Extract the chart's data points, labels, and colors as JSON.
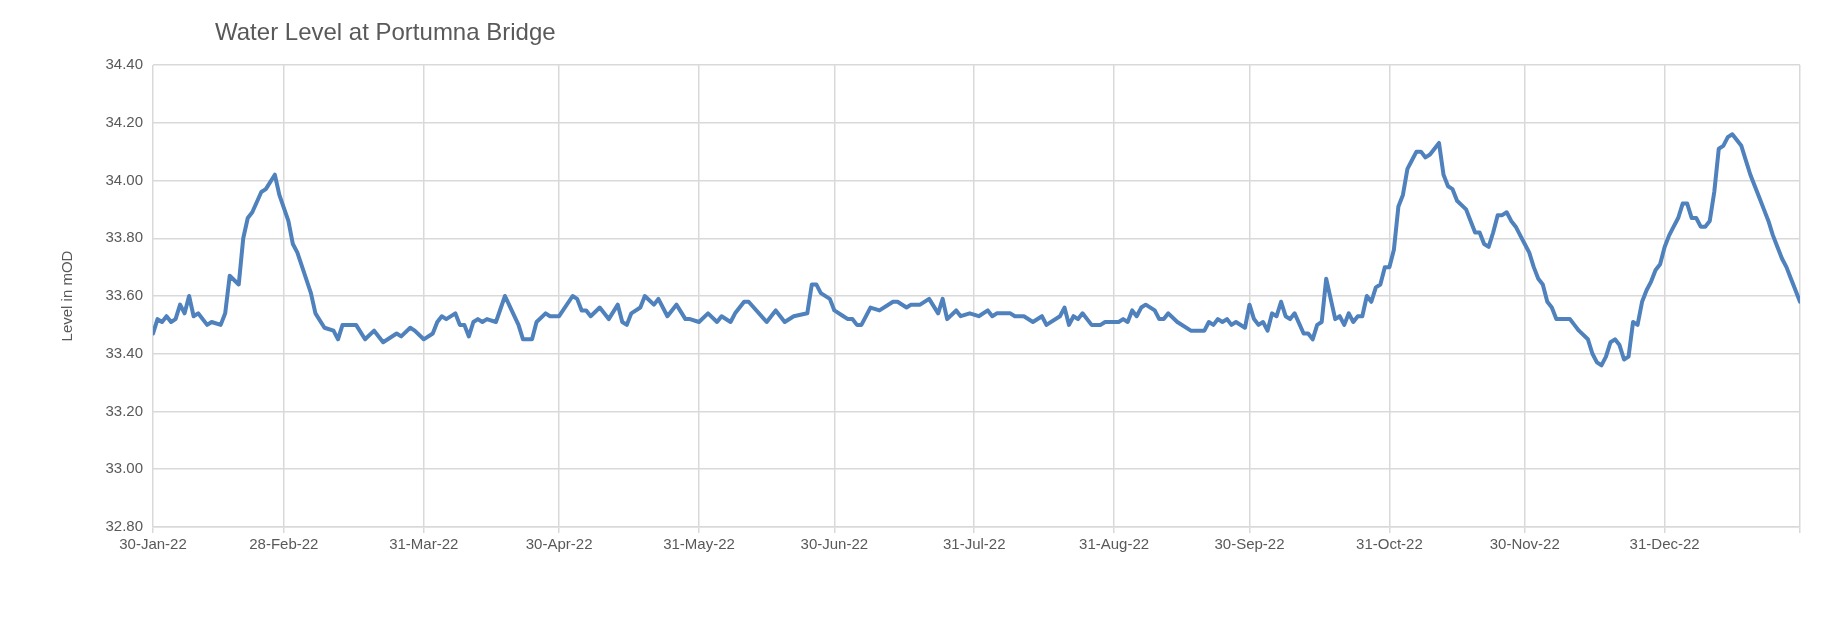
{
  "chart_data": {
    "type": "line",
    "title": "Water Level at Portumna Bridge",
    "ylabel": "Level in mOD",
    "xlim": [
      "2022-01-30",
      "2023-01-30"
    ],
    "xticks": [
      {
        "value": "2022-01-30",
        "label": "30-Jan-22"
      },
      {
        "value": "2022-02-28",
        "label": "28-Feb-22"
      },
      {
        "value": "2022-03-31",
        "label": "31-Mar-22"
      },
      {
        "value": "2022-04-30",
        "label": "30-Apr-22"
      },
      {
        "value": "2022-05-31",
        "label": "31-May-22"
      },
      {
        "value": "2022-06-30",
        "label": "30-Jun-22"
      },
      {
        "value": "2022-07-31",
        "label": "31-Jul-22"
      },
      {
        "value": "2022-08-31",
        "label": "31-Aug-22"
      },
      {
        "value": "2022-09-30",
        "label": "30-Sep-22"
      },
      {
        "value": "2022-10-31",
        "label": "31-Oct-22"
      },
      {
        "value": "2022-11-30",
        "label": "30-Nov-22"
      },
      {
        "value": "2022-12-31",
        "label": "31-Dec-22"
      },
      {
        "value": "2023-01-30",
        "label": null
      }
    ],
    "ylim": [
      32.8,
      34.4
    ],
    "yticks": [
      {
        "value": 32.8,
        "label": "32.80"
      },
      {
        "value": 33.0,
        "label": "33.00"
      },
      {
        "value": 33.2,
        "label": "33.20"
      },
      {
        "value": 33.4,
        "label": "33.40"
      },
      {
        "value": 33.6,
        "label": "33.60"
      },
      {
        "value": 33.8,
        "label": "33.80"
      },
      {
        "value": 34.0,
        "label": "34.00"
      },
      {
        "value": 34.2,
        "label": "34.20"
      },
      {
        "value": 34.4,
        "label": "34.40"
      }
    ],
    "grid": true,
    "legend": false,
    "marker": "none",
    "line_style": "solid",
    "series": [
      {
        "color": "#4f81bd",
        "x": [
          "2022-01-30",
          "2022-01-31",
          "2022-02-01",
          "2022-02-02",
          "2022-02-03",
          "2022-02-04",
          "2022-02-05",
          "2022-02-06",
          "2022-02-07",
          "2022-02-08",
          "2022-02-09",
          "2022-02-11",
          "2022-02-12",
          "2022-02-14",
          "2022-02-15",
          "2022-02-16",
          "2022-02-18",
          "2022-02-19",
          "2022-02-20",
          "2022-02-21",
          "2022-02-23",
          "2022-02-24",
          "2022-02-26",
          "2022-02-27",
          "2022-03-01",
          "2022-03-02",
          "2022-03-03",
          "2022-03-06",
          "2022-03-07",
          "2022-03-09",
          "2022-03-11",
          "2022-03-12",
          "2022-03-13",
          "2022-03-16",
          "2022-03-18",
          "2022-03-20",
          "2022-03-22",
          "2022-03-25",
          "2022-03-26",
          "2022-03-28",
          "2022-03-29",
          "2022-03-31",
          "2022-04-02",
          "2022-04-03",
          "2022-04-04",
          "2022-04-05",
          "2022-04-07",
          "2022-04-08",
          "2022-04-09",
          "2022-04-10",
          "2022-04-11",
          "2022-04-12",
          "2022-04-13",
          "2022-04-14",
          "2022-04-16",
          "2022-04-18",
          "2022-04-21",
          "2022-04-22",
          "2022-04-24",
          "2022-04-25",
          "2022-04-27",
          "2022-04-28",
          "2022-04-30",
          "2022-05-03",
          "2022-05-04",
          "2022-05-05",
          "2022-05-06",
          "2022-05-07",
          "2022-05-09",
          "2022-05-11",
          "2022-05-13",
          "2022-05-14",
          "2022-05-15",
          "2022-05-16",
          "2022-05-18",
          "2022-05-19",
          "2022-05-21",
          "2022-05-22",
          "2022-05-24",
          "2022-05-26",
          "2022-05-28",
          "2022-05-29",
          "2022-05-31",
          "2022-06-02",
          "2022-06-04",
          "2022-06-05",
          "2022-06-07",
          "2022-06-08",
          "2022-06-10",
          "2022-06-11",
          "2022-06-15",
          "2022-06-17",
          "2022-06-19",
          "2022-06-21",
          "2022-06-24",
          "2022-06-25",
          "2022-06-26",
          "2022-06-27",
          "2022-06-29",
          "2022-06-30",
          "2022-07-02",
          "2022-07-03",
          "2022-07-04",
          "2022-07-05",
          "2022-07-06",
          "2022-07-08",
          "2022-07-10",
          "2022-07-13",
          "2022-07-14",
          "2022-07-16",
          "2022-07-17",
          "2022-07-19",
          "2022-07-21",
          "2022-07-23",
          "2022-07-24",
          "2022-07-25",
          "2022-07-27",
          "2022-07-28",
          "2022-07-30",
          "2022-08-01",
          "2022-08-03",
          "2022-08-04",
          "2022-08-05",
          "2022-08-08",
          "2022-08-09",
          "2022-08-11",
          "2022-08-13",
          "2022-08-15",
          "2022-08-16",
          "2022-08-19",
          "2022-08-20",
          "2022-08-21",
          "2022-08-22",
          "2022-08-23",
          "2022-08-24",
          "2022-08-26",
          "2022-08-28",
          "2022-08-29",
          "2022-09-01",
          "2022-09-02",
          "2022-09-03",
          "2022-09-04",
          "2022-09-05",
          "2022-09-06",
          "2022-09-07",
          "2022-09-09",
          "2022-09-10",
          "2022-09-11",
          "2022-09-12",
          "2022-09-14",
          "2022-09-17",
          "2022-09-20",
          "2022-09-21",
          "2022-09-22",
          "2022-09-23",
          "2022-09-24",
          "2022-09-25",
          "2022-09-26",
          "2022-09-27",
          "2022-09-29",
          "2022-09-30",
          "2022-10-01",
          "2022-10-02",
          "2022-10-03",
          "2022-10-04",
          "2022-10-05",
          "2022-10-06",
          "2022-10-07",
          "2022-10-08",
          "2022-10-09",
          "2022-10-10",
          "2022-10-12",
          "2022-10-13",
          "2022-10-14",
          "2022-10-15",
          "2022-10-16",
          "2022-10-17",
          "2022-10-19",
          "2022-10-20",
          "2022-10-21",
          "2022-10-22",
          "2022-10-23",
          "2022-10-24",
          "2022-10-25",
          "2022-10-26",
          "2022-10-27",
          "2022-10-28",
          "2022-10-29",
          "2022-10-30",
          "2022-10-31",
          "2022-11-01",
          "2022-11-02",
          "2022-11-03",
          "2022-11-04",
          "2022-11-05",
          "2022-11-06",
          "2022-11-07",
          "2022-11-08",
          "2022-11-09",
          "2022-11-11",
          "2022-11-12",
          "2022-11-13",
          "2022-11-14",
          "2022-11-15",
          "2022-11-17",
          "2022-11-18",
          "2022-11-19",
          "2022-11-20",
          "2022-11-21",
          "2022-11-22",
          "2022-11-23",
          "2022-11-24",
          "2022-11-25",
          "2022-11-26",
          "2022-11-27",
          "2022-11-28",
          "2022-11-29",
          "2022-11-30",
          "2022-12-01",
          "2022-12-02",
          "2022-12-03",
          "2022-12-04",
          "2022-12-05",
          "2022-12-06",
          "2022-12-07",
          "2022-12-10",
          "2022-12-11",
          "2022-12-12",
          "2022-12-14",
          "2022-12-15",
          "2022-12-16",
          "2022-12-17",
          "2022-12-18",
          "2022-12-19",
          "2022-12-20",
          "2022-12-21",
          "2022-12-22",
          "2022-12-23",
          "2022-12-24",
          "2022-12-25",
          "2022-12-26",
          "2022-12-27",
          "2022-12-28",
          "2022-12-29",
          "2022-12-30",
          "2022-12-31",
          "2023-01-01",
          "2023-01-02",
          "2023-01-03",
          "2023-01-04",
          "2023-01-05",
          "2023-01-06",
          "2023-01-07",
          "2023-01-08",
          "2023-01-09",
          "2023-01-10",
          "2023-01-11",
          "2023-01-12",
          "2023-01-13",
          "2023-01-14",
          "2023-01-15",
          "2023-01-16",
          "2023-01-17",
          "2023-01-18",
          "2023-01-19",
          "2023-01-20",
          "2023-01-21",
          "2023-01-22",
          "2023-01-23",
          "2023-01-24",
          "2023-01-25",
          "2023-01-26",
          "2023-01-27",
          "2023-01-28",
          "2023-01-29",
          "2023-01-30"
        ],
        "values": [
          33.47,
          33.52,
          33.51,
          33.53,
          33.51,
          33.52,
          33.57,
          33.54,
          33.6,
          33.53,
          33.54,
          33.5,
          33.51,
          33.5,
          33.54,
          33.67,
          33.64,
          33.8,
          33.87,
          33.89,
          33.96,
          33.97,
          34.02,
          33.95,
          33.86,
          33.78,
          33.75,
          33.61,
          33.54,
          33.49,
          33.48,
          33.45,
          33.5,
          33.5,
          33.45,
          33.48,
          33.44,
          33.47,
          33.46,
          33.49,
          33.48,
          33.45,
          33.47,
          33.51,
          33.53,
          33.52,
          33.54,
          33.5,
          33.5,
          33.46,
          33.51,
          33.52,
          33.51,
          33.52,
          33.51,
          33.6,
          33.5,
          33.45,
          33.45,
          33.51,
          33.54,
          33.53,
          33.53,
          33.6,
          33.59,
          33.55,
          33.55,
          33.53,
          33.56,
          33.52,
          33.57,
          33.51,
          33.5,
          33.54,
          33.56,
          33.6,
          33.57,
          33.59,
          33.53,
          33.57,
          33.52,
          33.52,
          33.51,
          33.54,
          33.51,
          33.53,
          33.51,
          33.54,
          33.58,
          33.58,
          33.51,
          33.55,
          33.51,
          33.53,
          33.54,
          33.64,
          33.64,
          33.61,
          33.59,
          33.55,
          33.53,
          33.52,
          33.52,
          33.5,
          33.5,
          33.56,
          33.55,
          33.58,
          33.58,
          33.56,
          33.57,
          33.57,
          33.59,
          33.54,
          33.59,
          33.52,
          33.55,
          33.53,
          33.54,
          33.53,
          33.55,
          33.53,
          33.54,
          33.54,
          33.53,
          33.53,
          33.51,
          33.53,
          33.5,
          33.53,
          33.56,
          33.5,
          33.53,
          33.52,
          33.54,
          33.5,
          33.5,
          33.51,
          33.51,
          33.52,
          33.51,
          33.55,
          33.53,
          33.56,
          33.57,
          33.55,
          33.52,
          33.52,
          33.54,
          33.51,
          33.48,
          33.48,
          33.51,
          33.5,
          33.52,
          33.51,
          33.52,
          33.5,
          33.51,
          33.49,
          33.57,
          33.52,
          33.5,
          33.51,
          33.48,
          33.54,
          33.53,
          33.58,
          33.53,
          33.52,
          33.54,
          33.47,
          33.47,
          33.45,
          33.5,
          33.51,
          33.66,
          33.52,
          33.53,
          33.5,
          33.54,
          33.51,
          33.53,
          33.53,
          33.6,
          33.58,
          33.63,
          33.64,
          33.7,
          33.7,
          33.76,
          33.91,
          33.95,
          34.04,
          34.07,
          34.1,
          34.1,
          34.08,
          34.09,
          34.13,
          34.02,
          33.98,
          33.97,
          33.93,
          33.9,
          33.86,
          33.82,
          33.82,
          33.78,
          33.77,
          33.82,
          33.88,
          33.88,
          33.89,
          33.86,
          33.84,
          33.81,
          33.78,
          33.75,
          33.7,
          33.66,
          33.64,
          33.58,
          33.56,
          33.52,
          33.52,
          33.5,
          33.48,
          33.45,
          33.4,
          33.37,
          33.36,
          33.39,
          33.44,
          33.45,
          33.43,
          33.38,
          33.39,
          33.51,
          33.5,
          33.58,
          33.62,
          33.65,
          33.69,
          33.71,
          33.77,
          33.81,
          33.84,
          33.87,
          33.92,
          33.92,
          33.87,
          33.87,
          33.84,
          33.84,
          33.86,
          33.96,
          34.11,
          34.12,
          34.15,
          34.16,
          34.14,
          34.12,
          34.07,
          34.02,
          33.98,
          33.94,
          33.9,
          33.86,
          33.81,
          33.77,
          33.73,
          33.7,
          33.66,
          33.62,
          33.58
        ]
      }
    ]
  }
}
